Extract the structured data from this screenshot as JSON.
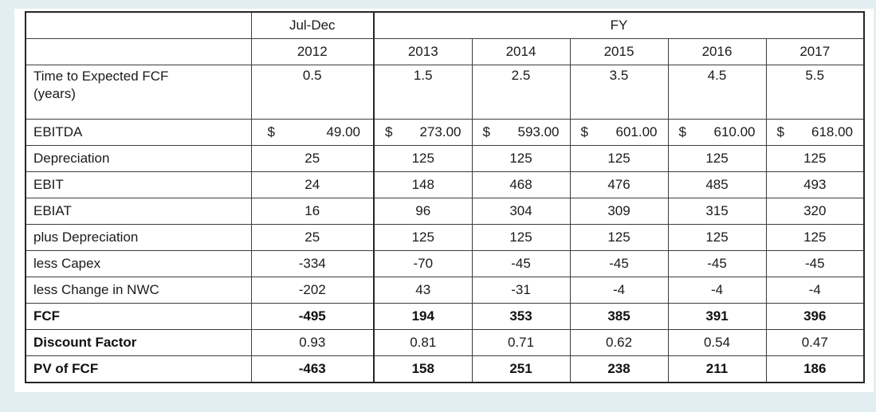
{
  "page": {
    "background_color": "#e2eef0",
    "card_color": "#ffffff"
  },
  "table": {
    "currency_symbol": "$",
    "header": {
      "period_label": "Jul-Dec",
      "group_label": "FY",
      "years": [
        "2012",
        "2013",
        "2014",
        "2015",
        "2016",
        "2017"
      ]
    },
    "rows": [
      {
        "label": "Time to Expected FCF\n(years)",
        "values": [
          "0.5",
          "1.5",
          "2.5",
          "3.5",
          "4.5",
          "5.5"
        ],
        "valign": "top"
      },
      {
        "label": "EBITDA",
        "values": [
          "49.00",
          "273.00",
          "593.00",
          "601.00",
          "610.00",
          "618.00"
        ],
        "currency": true
      },
      {
        "label": "Depreciation",
        "values": [
          "25",
          "125",
          "125",
          "125",
          "125",
          "125"
        ]
      },
      {
        "label": "EBIT",
        "values": [
          "24",
          "148",
          "468",
          "476",
          "485",
          "493"
        ]
      },
      {
        "label": "EBIAT",
        "values": [
          "16",
          "96",
          "304",
          "309",
          "315",
          "320"
        ]
      },
      {
        "label": "plus Depreciation",
        "values": [
          "25",
          "125",
          "125",
          "125",
          "125",
          "125"
        ]
      },
      {
        "label": "less Capex",
        "values": [
          "-334",
          "-70",
          "-45",
          "-45",
          "-45",
          "-45"
        ]
      },
      {
        "label": "less Change in NWC",
        "values": [
          "-202",
          "43",
          "-31",
          "-4",
          "-4",
          "-4"
        ]
      },
      {
        "label": "FCF",
        "values": [
          "-495",
          "194",
          "353",
          "385",
          "391",
          "396"
        ],
        "bold": "row"
      },
      {
        "label": "Discount Factor",
        "values": [
          "0.93",
          "0.81",
          "0.71",
          "0.62",
          "0.54",
          "0.47"
        ],
        "bold": "label"
      },
      {
        "label": "PV of FCF",
        "values": [
          "-463",
          "158",
          "251",
          "238",
          "211",
          "186"
        ],
        "bold": "row"
      }
    ]
  }
}
